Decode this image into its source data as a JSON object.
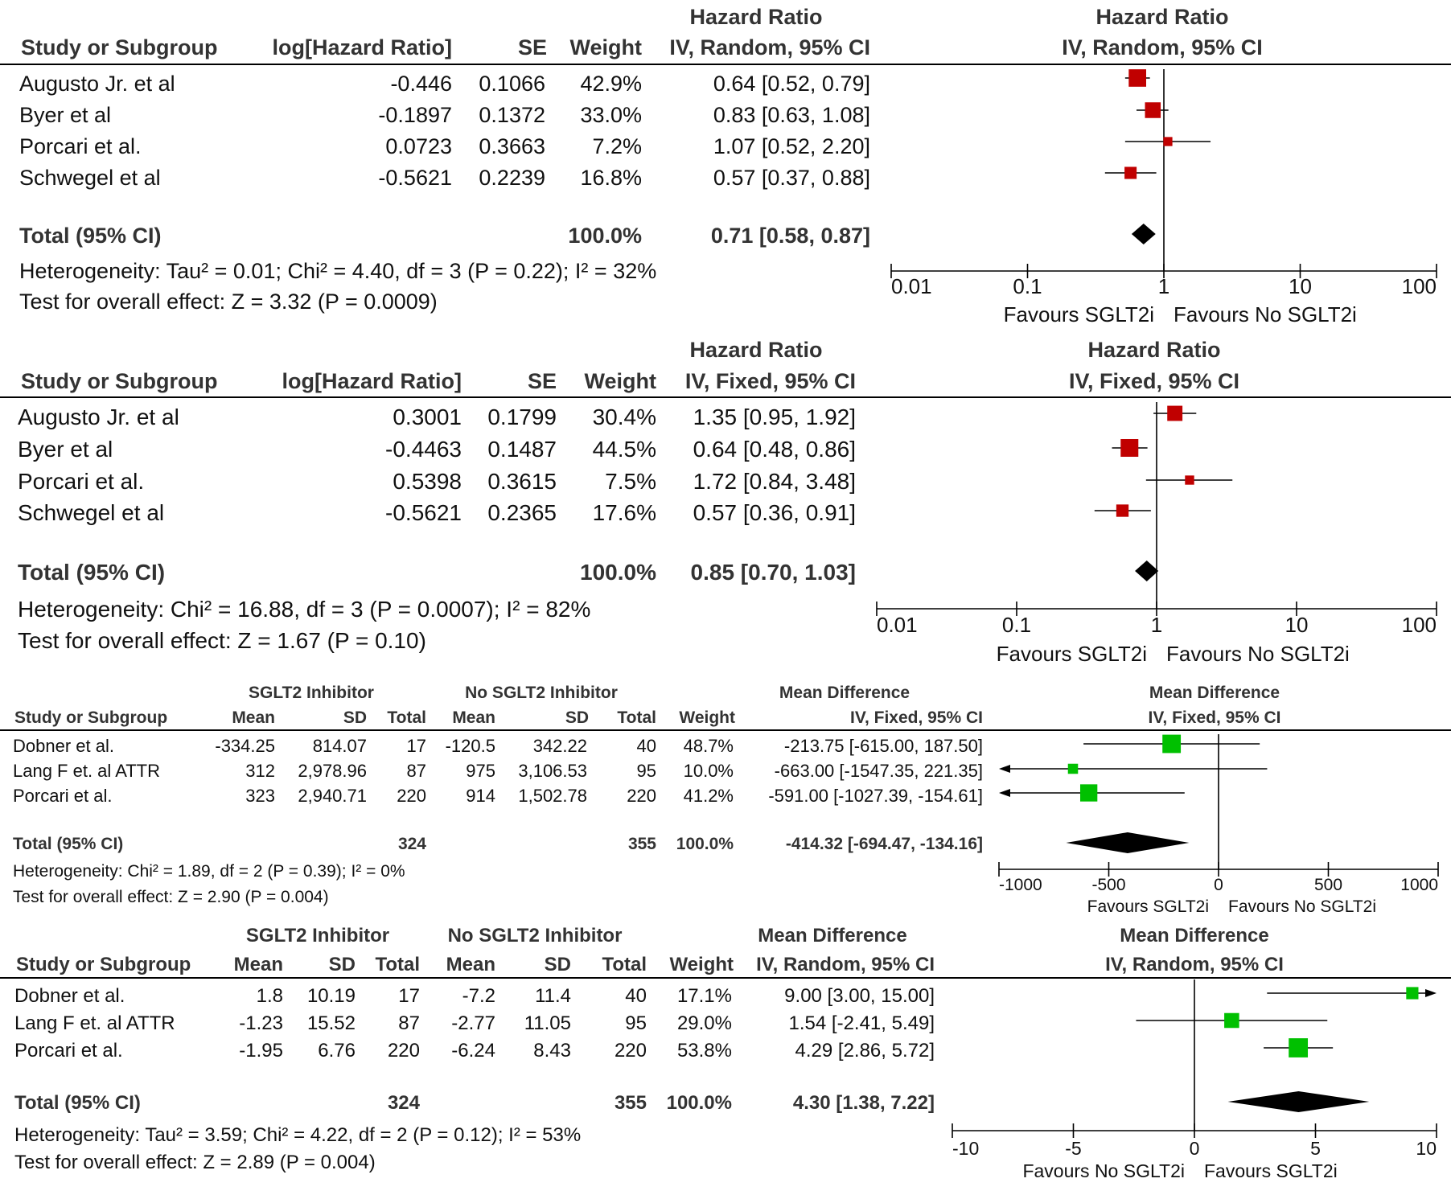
{
  "colors": {
    "hr_marker": "#c00000",
    "md_marker": "#00c000",
    "axis": "#000000",
    "text": "#111111"
  },
  "chart_data": [
    {
      "type": "forest",
      "columns": {
        "study": "Study or Subgroup",
        "lhr": "log[Hazard Ratio]",
        "se": "SE",
        "weight": "Weight"
      },
      "effect_header_top": "Hazard Ratio",
      "effect_header": "IV, Random, 95% CI",
      "plot_header_top": "Hazard Ratio",
      "plot_header": "IV, Random, 95% CI",
      "scale": "log",
      "xlim": [
        0.01,
        100
      ],
      "ref": 1,
      "ticks": [
        0.01,
        0.1,
        1,
        10,
        100
      ],
      "tick_labels": [
        "0.01",
        "0.1",
        "1",
        "10",
        "100"
      ],
      "favours_left": "Favours SGLT2i",
      "favours_right": "Favours No SGLT2i",
      "rows": [
        {
          "study": "Augusto Jr. et al",
          "lhr": "-0.446",
          "se": "0.1066",
          "weight": "42.9%",
          "ci": "0.64 [0.52, 0.79]",
          "est": 0.64,
          "lo": 0.52,
          "hi": 0.79,
          "w": 42.9
        },
        {
          "study": "Byer et al",
          "lhr": "-0.1897",
          "se": "0.1372",
          "weight": "33.0%",
          "ci": "0.83 [0.63, 1.08]",
          "est": 0.83,
          "lo": 0.63,
          "hi": 1.08,
          "w": 33.0
        },
        {
          "study": "Porcari et al.",
          "lhr": "0.0723",
          "se": "0.3663",
          "weight": "7.2%",
          "ci": "1.07 [0.52, 2.20]",
          "est": 1.07,
          "lo": 0.52,
          "hi": 2.2,
          "w": 7.2
        },
        {
          "study": "Schwegel et al",
          "lhr": "-0.5621",
          "se": "0.2239",
          "weight": "16.8%",
          "ci": "0.57 [0.37, 0.88]",
          "est": 0.57,
          "lo": 0.37,
          "hi": 0.88,
          "w": 16.8
        }
      ],
      "total": {
        "label": "Total (95% CI)",
        "weight": "100.0%",
        "ci": "0.71 [0.58, 0.87]",
        "est": 0.71,
        "lo": 0.58,
        "hi": 0.87
      },
      "heterogeneity": "Heterogeneity: Tau² = 0.01; Chi² = 4.40, df = 3 (P = 0.22); I² = 32%",
      "overall": "Test for overall effect: Z = 3.32 (P = 0.0009)"
    },
    {
      "type": "forest",
      "columns": {
        "study": "Study or Subgroup",
        "lhr": "log[Hazard Ratio]",
        "se": "SE",
        "weight": "Weight"
      },
      "effect_header_top": "Hazard Ratio",
      "effect_header": "IV, Fixed, 95% CI",
      "plot_header_top": "Hazard Ratio",
      "plot_header": "IV, Fixed, 95% CI",
      "scale": "log",
      "xlim": [
        0.01,
        100
      ],
      "ref": 1,
      "ticks": [
        0.01,
        0.1,
        1,
        10,
        100
      ],
      "tick_labels": [
        "0.01",
        "0.1",
        "1",
        "10",
        "100"
      ],
      "favours_left": "Favours SGLT2i",
      "favours_right": "Favours No SGLT2i",
      "rows": [
        {
          "study": "Augusto Jr. et al",
          "lhr": "0.3001",
          "se": "0.1799",
          "weight": "30.4%",
          "ci": "1.35 [0.95, 1.92]",
          "est": 1.35,
          "lo": 0.95,
          "hi": 1.92,
          "w": 30.4
        },
        {
          "study": "Byer et al",
          "lhr": "-0.4463",
          "se": "0.1487",
          "weight": "44.5%",
          "ci": "0.64 [0.48, 0.86]",
          "est": 0.64,
          "lo": 0.48,
          "hi": 0.86,
          "w": 44.5
        },
        {
          "study": "Porcari et al.",
          "lhr": "0.5398",
          "se": "0.3615",
          "weight": "7.5%",
          "ci": "1.72 [0.84, 3.48]",
          "est": 1.72,
          "lo": 0.84,
          "hi": 3.48,
          "w": 7.5
        },
        {
          "study": "Schwegel et al",
          "lhr": "-0.5621",
          "se": "0.2365",
          "weight": "17.6%",
          "ci": "0.57 [0.36, 0.91]",
          "est": 0.57,
          "lo": 0.36,
          "hi": 0.91,
          "w": 17.6
        }
      ],
      "total": {
        "label": "Total (95% CI)",
        "weight": "100.0%",
        "ci": "0.85 [0.70, 1.03]",
        "est": 0.85,
        "lo": 0.7,
        "hi": 1.03
      },
      "heterogeneity": "Heterogeneity: Chi² = 16.88, df = 3 (P = 0.0007); I² = 82%",
      "overall": "Test for overall effect: Z = 1.67 (P = 0.10)"
    },
    {
      "type": "forest",
      "group_a": "SGLT2 Inhibitor",
      "group_b": "No SGLT2 Inhibitor",
      "columns": {
        "study": "Study or Subgroup",
        "mean": "Mean",
        "sd": "SD",
        "total": "Total",
        "weight": "Weight"
      },
      "effect_header_top": "Mean Difference",
      "effect_header": "IV, Fixed, 95% CI",
      "plot_header_top": "Mean Difference",
      "plot_header": "IV, Fixed, 95% CI",
      "scale": "linear",
      "xlim": [
        -1000,
        1000
      ],
      "ref": 0,
      "ticks": [
        -1000,
        -500,
        0,
        500,
        1000
      ],
      "tick_labels": [
        "-1000",
        "-500",
        "0",
        "500",
        "1000"
      ],
      "favours_left": "Favours SGLT2i",
      "favours_right": "Favours No SGLT2i",
      "rows": [
        {
          "study": "Dobner et al.",
          "m1": "-334.25",
          "sd1": "814.07",
          "n1": "17",
          "m2": "-120.5",
          "sd2": "342.22",
          "n2": "40",
          "weight": "48.7%",
          "ci": "-213.75 [-615.00, 187.50]",
          "est": -213.75,
          "lo": -615.0,
          "hi": 187.5,
          "w": 48.7
        },
        {
          "study": "Lang F et. al ATTR",
          "m1": "312",
          "sd1": "2,978.96",
          "n1": "87",
          "m2": "975",
          "sd2": "3,106.53",
          "n2": "95",
          "weight": "10.0%",
          "ci": "-663.00 [-1547.35, 221.35]",
          "est": -663.0,
          "lo": -1547.35,
          "hi": 221.35,
          "w": 10.0
        },
        {
          "study": "Porcari et al.",
          "m1": "323",
          "sd1": "2,940.71",
          "n1": "220",
          "m2": "914",
          "sd2": "1,502.78",
          "n2": "220",
          "weight": "41.2%",
          "ci": "-591.00 [-1027.39, -154.61]",
          "est": -591.0,
          "lo": -1027.39,
          "hi": -154.61,
          "w": 41.2
        }
      ],
      "total": {
        "label": "Total (95% CI)",
        "n1": "324",
        "n2": "355",
        "weight": "100.0%",
        "ci": "-414.32 [-694.47, -134.16]",
        "est": -414.32,
        "lo": -694.47,
        "hi": -134.16
      },
      "heterogeneity": "Heterogeneity: Chi² = 1.89, df = 2 (P = 0.39); I² = 0%",
      "overall": "Test for overall effect: Z = 2.90 (P = 0.004)"
    },
    {
      "type": "forest",
      "group_a": "SGLT2 Inhibitor",
      "group_b": "No SGLT2 Inhibitor",
      "columns": {
        "study": "Study or Subgroup",
        "mean": "Mean",
        "sd": "SD",
        "total": "Total",
        "weight": "Weight"
      },
      "effect_header_top": "Mean Difference",
      "effect_header": "IV, Random, 95% CI",
      "plot_header_top": "Mean Difference",
      "plot_header": "IV, Random, 95% CI",
      "scale": "linear",
      "xlim": [
        -10,
        10
      ],
      "ref": 0,
      "ticks": [
        -10,
        -5,
        0,
        5,
        10
      ],
      "tick_labels": [
        "-10",
        "-5",
        "0",
        "5",
        "10"
      ],
      "favours_left": "Favours No SGLT2i",
      "favours_right": "Favours SGLT2i",
      "rows": [
        {
          "study": "Dobner et al.",
          "m1": "1.8",
          "sd1": "10.19",
          "n1": "17",
          "m2": "-7.2",
          "sd2": "11.4",
          "n2": "40",
          "weight": "17.1%",
          "ci": "9.00 [3.00, 15.00]",
          "est": 9.0,
          "lo": 3.0,
          "hi": 15.0,
          "w": 17.1
        },
        {
          "study": "Lang F et. al ATTR",
          "m1": "-1.23",
          "sd1": "15.52",
          "n1": "87",
          "m2": "-2.77",
          "sd2": "11.05",
          "n2": "95",
          "weight": "29.0%",
          "ci": "1.54 [-2.41, 5.49]",
          "est": 1.54,
          "lo": -2.41,
          "hi": 5.49,
          "w": 29.0
        },
        {
          "study": "Porcari et al.",
          "m1": "-1.95",
          "sd1": "6.76",
          "n1": "220",
          "m2": "-6.24",
          "sd2": "8.43",
          "n2": "220",
          "weight": "53.8%",
          "ci": "4.29 [2.86, 5.72]",
          "est": 4.29,
          "lo": 2.86,
          "hi": 5.72,
          "w": 53.8
        }
      ],
      "total": {
        "label": "Total (95% CI)",
        "n1": "324",
        "n2": "355",
        "weight": "100.0%",
        "ci": "4.30 [1.38, 7.22]",
        "est": 4.3,
        "lo": 1.38,
        "hi": 7.22
      },
      "heterogeneity": "Heterogeneity: Tau² = 3.59; Chi² = 4.22, df = 2 (P = 0.12); I² = 53%",
      "overall": "Test for overall effect: Z = 2.89 (P = 0.004)"
    }
  ]
}
